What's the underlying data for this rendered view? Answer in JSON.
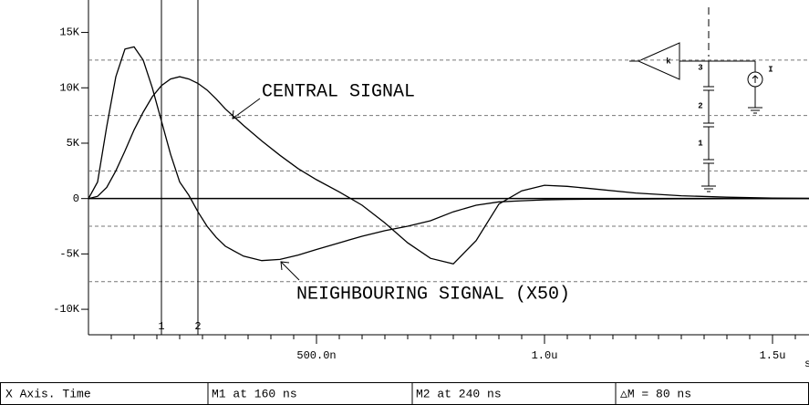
{
  "chart_data": {
    "type": "line",
    "x": [
      0,
      20,
      40,
      60,
      80,
      100,
      120,
      140,
      160,
      180,
      200,
      220,
      240,
      260,
      280,
      300,
      340,
      380,
      420,
      460,
      500,
      550,
      600,
      650,
      700,
      750,
      800,
      850,
      900,
      950,
      1000,
      1050,
      1100,
      1200,
      1300,
      1400,
      1500,
      1580
    ],
    "series": [
      {
        "color": "#000000",
        "values": [
          0,
          200,
          1000,
          2500,
          4300,
          6200,
          7800,
          9200,
          10200,
          10800,
          11000,
          10800,
          10400,
          9800,
          9000,
          8100,
          6600,
          5200,
          3900,
          2700,
          1700,
          600,
          -600,
          -2200,
          -4000,
          -5400,
          -5900,
          -3800,
          -500,
          700,
          1200,
          1100,
          900,
          500,
          250,
          120,
          50,
          20
        ]
      },
      {
        "color": "#000000",
        "values": [
          0,
          1500,
          6500,
          11000,
          13500,
          13700,
          12500,
          10000,
          7000,
          4000,
          1500,
          300,
          -1200,
          -2500,
          -3500,
          -4300,
          -5200,
          -5600,
          -5500,
          -5100,
          -4600,
          -4000,
          -3400,
          -2900,
          -2500,
          -2000,
          -1200,
          -600,
          -300,
          -200,
          -120,
          -80,
          -60,
          -40,
          -25,
          -15,
          -10,
          -5
        ]
      }
    ],
    "xlim": [
      0,
      1580
    ],
    "ylim": [
      -12300,
      17930
    ],
    "xticks": [
      {
        "value": 500,
        "label": "500.0n"
      },
      {
        "value": 1000,
        "label": "1.0u"
      },
      {
        "value": 1500,
        "label": "1.5u"
      }
    ],
    "xminorticks": [
      50,
      100,
      150,
      200,
      250,
      300,
      350,
      400,
      450,
      550,
      600,
      650,
      700,
      750,
      800,
      850,
      900,
      950,
      1050,
      1100,
      1150,
      1200,
      1250,
      1300,
      1350,
      1400,
      1450,
      1550
    ],
    "yticks": [
      {
        "value": 15000,
        "label": "15K"
      },
      {
        "value": 10000,
        "label": "10K"
      },
      {
        "value": 5000,
        "label": "5K"
      },
      0,
      {
        "value": -5000,
        "label": "-5K"
      },
      {
        "value": -10000,
        "label": "-10K"
      }
    ],
    "grid_lines": [
      12500,
      7500,
      2500,
      -2500,
      -7500
    ],
    "x_unit": "s",
    "markers": [
      {
        "label": "1",
        "x": 160
      },
      {
        "label": "2",
        "x": 240
      }
    ],
    "annotations": [
      "CENTRAL SIGNAL",
      "NEIGHBOURING SIGNAL (X50)"
    ],
    "schematic_labels": [
      "k",
      "3",
      "2",
      "1",
      "I"
    ]
  },
  "status_bar": [
    "X Axis. Time",
    "M1 at 160 ns",
    "M2 at 240 ns",
    "△M = 80 ns"
  ]
}
